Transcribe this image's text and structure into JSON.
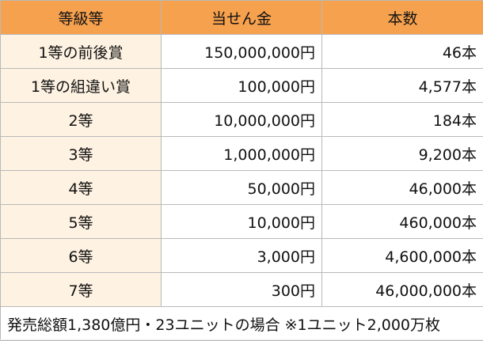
{
  "table": {
    "headers": [
      "等級等",
      "当せん金",
      "本数"
    ],
    "rows": [
      {
        "grade": "1等の前後賞",
        "amount": "150,000,000円",
        "count": "46本"
      },
      {
        "grade": "1等の組違い賞",
        "amount": "100,000円",
        "count": "4,577本"
      },
      {
        "grade": "2等",
        "amount": "10,000,000円",
        "count": "184本"
      },
      {
        "grade": "3等",
        "amount": "1,000,000円",
        "count": "9,200本"
      },
      {
        "grade": "4等",
        "amount": "50,000円",
        "count": "46,000本"
      },
      {
        "grade": "5等",
        "amount": "10,000円",
        "count": "460,000本"
      },
      {
        "grade": "6等",
        "amount": "3,000円",
        "count": "4,600,000本"
      },
      {
        "grade": "7等",
        "amount": "300円",
        "count": "46,000,000本"
      }
    ],
    "footnote": "発売総額1,380億円・23ユニットの場合 ※1ユニット2,000万枚"
  },
  "colors": {
    "header_bg": "#f6a14e",
    "grade_cell_bg": "#fef2e2",
    "value_cell_bg": "#ffffff",
    "border": "#b9b9b9"
  }
}
